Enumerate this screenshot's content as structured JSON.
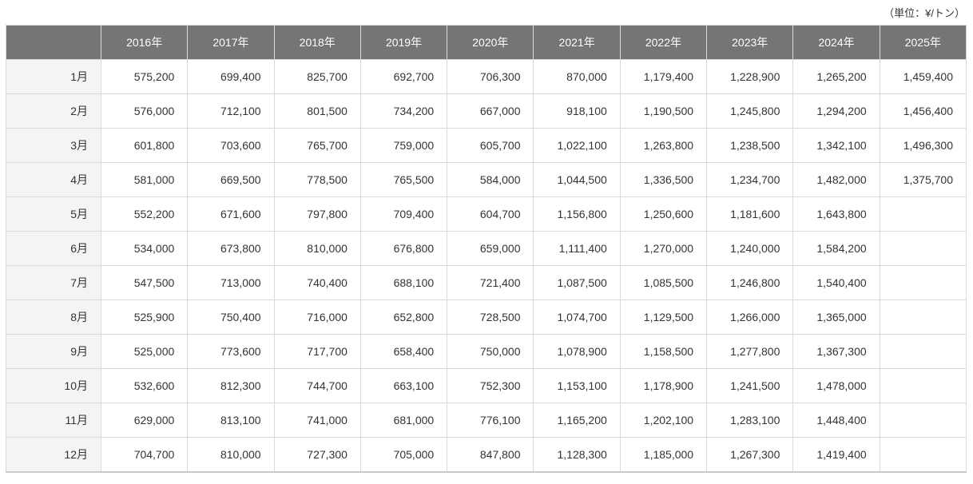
{
  "page": {
    "unit_label": "（単位：¥/トン）"
  },
  "colors": {
    "header_bg": "#757575",
    "header_text": "#ffffff",
    "row_label_bg": "#f4f4f4",
    "cell_bg": "#ffffff",
    "border": "#d9d9d9",
    "bottom_border": "#c9c9c9",
    "text": "#333333"
  },
  "chart_data": {
    "type": "table",
    "title": "",
    "unit_label": "（単位：¥/トン）",
    "columns": [
      "2016年",
      "2017年",
      "2018年",
      "2019年",
      "2020年",
      "2021年",
      "2022年",
      "2023年",
      "2024年",
      "2025年"
    ],
    "row_labels": [
      "1月",
      "2月",
      "3月",
      "4月",
      "5月",
      "6月",
      "7月",
      "8月",
      "9月",
      "10月",
      "11月",
      "12月"
    ],
    "values": [
      [
        575200,
        699400,
        825700,
        692700,
        706300,
        870000,
        1179400,
        1228900,
        1265200,
        1459400
      ],
      [
        576000,
        712100,
        801500,
        734200,
        667000,
        918100,
        1190500,
        1245800,
        1294200,
        1456400
      ],
      [
        601800,
        703600,
        765700,
        759000,
        605700,
        1022100,
        1263800,
        1238500,
        1342100,
        1496300
      ],
      [
        581000,
        669500,
        778500,
        765500,
        584000,
        1044500,
        1336500,
        1234700,
        1482000,
        1375700
      ],
      [
        552200,
        671600,
        797800,
        709400,
        604700,
        1156800,
        1250600,
        1181600,
        1643800,
        null
      ],
      [
        534000,
        673800,
        810000,
        676800,
        659000,
        1111400,
        1270000,
        1240000,
        1584200,
        null
      ],
      [
        547500,
        713000,
        740400,
        688100,
        721400,
        1087500,
        1085500,
        1246800,
        1540400,
        null
      ],
      [
        525900,
        750400,
        716000,
        652800,
        728500,
        1074700,
        1129500,
        1266000,
        1365000,
        null
      ],
      [
        525000,
        773600,
        717700,
        658400,
        750000,
        1078900,
        1158500,
        1277800,
        1367300,
        null
      ],
      [
        532600,
        812300,
        744700,
        663100,
        752300,
        1153100,
        1178900,
        1241500,
        1478000,
        null
      ],
      [
        629000,
        813100,
        741000,
        681000,
        776100,
        1165200,
        1202100,
        1283100,
        1448400,
        null
      ],
      [
        704700,
        810000,
        727300,
        705000,
        847800,
        1128300,
        1185000,
        1267300,
        1419400,
        null
      ]
    ]
  }
}
